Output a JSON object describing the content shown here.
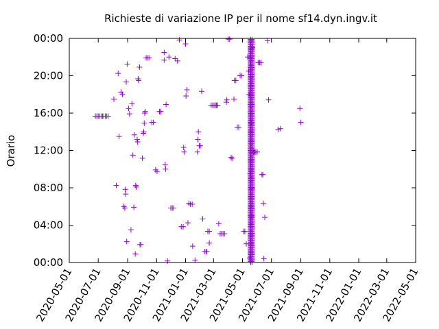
{
  "chart_data": {
    "type": "scatter",
    "title": "Richieste di variazione IP per il nome sf14.dyn.ingv.it",
    "xlabel": "",
    "ylabel": "Orario",
    "x_ticks": [
      "2020-05-01",
      "2020-07-01",
      "2020-09-01",
      "2020-11-01",
      "2021-01-01",
      "2021-03-01",
      "2021-05-01",
      "2021-07-01",
      "2021-09-01",
      "2021-11-01",
      "2022-01-01",
      "2022-03-01",
      "2022-05-01"
    ],
    "y_ticks": [
      "00:00",
      "04:00",
      "08:00",
      "12:00",
      "16:00",
      "20:00",
      "00:00"
    ],
    "xlim": [
      "2020-05-01",
      "2022-05-01"
    ],
    "ylim": [
      "00:00",
      "24:00"
    ],
    "grid": false,
    "marker": "+",
    "series": [
      {
        "color": "#9400d3",
        "points": [
          [
            "2020-06-25",
            "15:40"
          ],
          [
            "2020-06-28",
            "15:40"
          ],
          [
            "2020-07-01",
            "15:40"
          ],
          [
            "2020-07-04",
            "15:40"
          ],
          [
            "2020-07-07",
            "15:40"
          ],
          [
            "2020-07-10",
            "15:40"
          ],
          [
            "2020-07-13",
            "15:40"
          ],
          [
            "2020-07-16",
            "15:40"
          ],
          [
            "2020-07-19",
            "15:40"
          ],
          [
            "2020-07-22",
            "15:40"
          ],
          [
            "2020-08-03",
            "17:30"
          ],
          [
            "2020-08-08",
            "08:15"
          ],
          [
            "2020-08-12",
            "20:15"
          ],
          [
            "2020-08-14",
            "13:30"
          ],
          [
            "2020-08-18",
            "18:15"
          ],
          [
            "2020-08-21",
            "18:00"
          ],
          [
            "2020-08-24",
            "06:00"
          ],
          [
            "2020-08-26",
            "05:50"
          ],
          [
            "2020-08-27",
            "07:50"
          ],
          [
            "2020-08-28",
            "07:20"
          ],
          [
            "2020-08-29",
            "19:20"
          ],
          [
            "2020-08-30",
            "02:15"
          ],
          [
            "2020-08-31",
            "21:15"
          ],
          [
            "2020-09-03",
            "15:90"
          ],
          [
            "2020-09-05",
            "15:55"
          ],
          [
            "2020-09-08",
            "03:30"
          ],
          [
            "2020-09-10",
            "17:00"
          ],
          [
            "2020-09-12",
            "11:30"
          ],
          [
            "2020-09-14",
            "05:55"
          ],
          [
            "2020-09-15",
            "13:40"
          ],
          [
            "2020-09-17",
            "00:55"
          ],
          [
            "2020-09-18",
            "08:15"
          ],
          [
            "2020-09-19",
            "08:05"
          ],
          [
            "2020-09-21",
            "13:10"
          ],
          [
            "2020-09-22",
            "12:55"
          ],
          [
            "2020-09-23",
            "19:40"
          ],
          [
            "2020-09-24",
            "19:30"
          ],
          [
            "2020-09-26",
            "20:55"
          ],
          [
            "2020-09-27",
            "01:55"
          ],
          [
            "2020-09-29",
            "01:55"
          ],
          [
            "2020-10-02",
            "11:10"
          ],
          [
            "2020-10-04",
            "13:50"
          ],
          [
            "2020-10-05",
            "14:00"
          ],
          [
            "2020-10-06",
            "14:55"
          ],
          [
            "2020-10-07",
            "16:00"
          ],
          [
            "2020-10-08",
            "16:10"
          ],
          [
            "2020-10-10",
            "21:55"
          ],
          [
            "2020-10-13",
            "21:55"
          ],
          [
            "2020-10-16",
            "21:55"
          ],
          [
            "2020-10-22",
            "15:00"
          ],
          [
            "2020-10-25",
            "15:00"
          ],
          [
            "2020-10-30",
            "09:55"
          ],
          [
            "2020-11-02",
            "09:45"
          ],
          [
            "2020-11-07",
            "16:10"
          ],
          [
            "2020-11-10",
            "16:10"
          ],
          [
            "2020-11-17",
            "22:30"
          ],
          [
            "2020-11-17",
            "21:40"
          ],
          [
            "2020-11-19",
            "10:30"
          ],
          [
            "2020-11-20",
            "10:00"
          ],
          [
            "2020-11-21",
            "16:55"
          ],
          [
            "2020-11-24",
            "00:10"
          ],
          [
            "2020-11-27",
            "22:00"
          ],
          [
            "2020-12-01",
            "05:50"
          ],
          [
            "2020-12-04",
            "05:50"
          ],
          [
            "2020-12-07",
            "05:50"
          ],
          [
            "2020-12-10",
            "21:50"
          ],
          [
            "2020-12-15",
            "21:35"
          ],
          [
            "2020-12-19",
            "23:50"
          ],
          [
            "2020-12-23",
            "03:50"
          ],
          [
            "2020-12-27",
            "03:50"
          ],
          [
            "2020-12-28",
            "12:20"
          ],
          [
            "2020-12-29",
            "11:50"
          ],
          [
            "2021-01-01",
            "23:25"
          ],
          [
            "2021-01-02",
            "17:50"
          ],
          [
            "2021-01-04",
            "18:30"
          ],
          [
            "2021-01-06",
            "04:15"
          ],
          [
            "2021-01-08",
            "06:20"
          ],
          [
            "2021-01-11",
            "06:15"
          ],
          [
            "2021-01-15",
            "06:15"
          ],
          [
            "2021-01-16",
            "01:45"
          ],
          [
            "2021-01-21",
            "00:15"
          ],
          [
            "2021-01-26",
            "11:50"
          ],
          [
            "2021-01-27",
            "13:10"
          ],
          [
            "2021-01-28",
            "14:00"
          ],
          [
            "2021-01-30",
            "12:30"
          ],
          [
            "2021-02-01",
            "12:30"
          ],
          [
            "2021-02-04",
            "18:20"
          ],
          [
            "2021-02-06",
            "04:40"
          ],
          [
            "2021-02-10",
            "01:10"
          ],
          [
            "2021-02-13",
            "01:10"
          ],
          [
            "2021-02-15",
            "01:10"
          ],
          [
            "2021-02-17",
            "03:20"
          ],
          [
            "2021-02-20",
            "03:20"
          ],
          [
            "2021-02-20",
            "02:05"
          ],
          [
            "2021-02-24",
            "16:50"
          ],
          [
            "2021-02-27",
            "16:50"
          ],
          [
            "2021-03-02",
            "16:50"
          ],
          [
            "2021-03-05",
            "16:50"
          ],
          [
            "2021-03-07",
            "16:50"
          ],
          [
            "2021-03-10",
            "16:50"
          ],
          [
            "2021-03-12",
            "04:10"
          ],
          [
            "2021-03-15",
            "03:05"
          ],
          [
            "2021-03-18",
            "03:05"
          ],
          [
            "2021-03-21",
            "03:05"
          ],
          [
            "2021-03-24",
            "03:05"
          ],
          [
            "2021-03-28",
            "17:10"
          ],
          [
            "2021-03-29",
            "17:25"
          ],
          [
            "2021-04-01",
            "23:55"
          ],
          [
            "2021-04-04",
            "23:55"
          ],
          [
            "2021-04-07",
            "11:15"
          ],
          [
            "2021-04-09",
            "11:10"
          ],
          [
            "2021-04-13",
            "17:30"
          ],
          [
            "2021-04-14",
            "19:30"
          ],
          [
            "2021-04-17",
            "19:30"
          ],
          [
            "2021-04-20",
            "14:30"
          ],
          [
            "2021-04-23",
            "14:30"
          ],
          [
            "2021-04-26",
            "20:00"
          ],
          [
            "2021-04-29",
            "20:00"
          ],
          [
            "2021-05-04",
            "03:20"
          ],
          [
            "2021-05-06",
            "03:20"
          ],
          [
            "2021-05-09",
            "02:00"
          ],
          [
            "2021-05-12",
            "22:00"
          ],
          [
            "2021-05-14",
            "20:30"
          ],
          [
            "2021-05-15",
            "18:00"
          ],
          [
            "2021-05-16",
            "00:30"
          ],
          [
            "2021-05-17",
            "09:30"
          ],
          [
            "2021-05-18",
            "12:00"
          ],
          [
            "2021-05-19",
            "15:00"
          ],
          [
            "2021-05-20",
            "05:00"
          ],
          [
            "2021-05-21",
            "08:00"
          ],
          [
            "2021-05-22",
            "23:00"
          ],
          [
            "2021-05-24",
            "11:50"
          ],
          [
            "2021-05-27",
            "11:50"
          ],
          [
            "2021-05-29",
            "11:50"
          ],
          [
            "2021-06-01",
            "11:50"
          ],
          [
            "2021-06-03",
            "21:25"
          ],
          [
            "2021-06-06",
            "21:25"
          ],
          [
            "2021-06-09",
            "21:25"
          ],
          [
            "2021-06-11",
            "09:25"
          ],
          [
            "2021-06-13",
            "09:25"
          ],
          [
            "2021-06-14",
            "06:20"
          ],
          [
            "2021-06-15",
            "00:25"
          ],
          [
            "2021-06-17",
            "04:50"
          ],
          [
            "2021-06-23",
            "23:45"
          ],
          [
            "2021-06-25",
            "17:25"
          ],
          [
            "2021-07-15",
            "14:15"
          ],
          [
            "2021-07-20",
            "14:20"
          ],
          [
            "2021-08-30",
            "16:30"
          ],
          [
            "2021-09-01",
            "15:00"
          ]
        ]
      }
    ],
    "dense_columns": [
      {
        "date": "2021-05-18",
        "from": "00:00",
        "to": "24:00"
      },
      {
        "date": "2021-05-21",
        "from": "00:00",
        "to": "24:00"
      }
    ]
  }
}
